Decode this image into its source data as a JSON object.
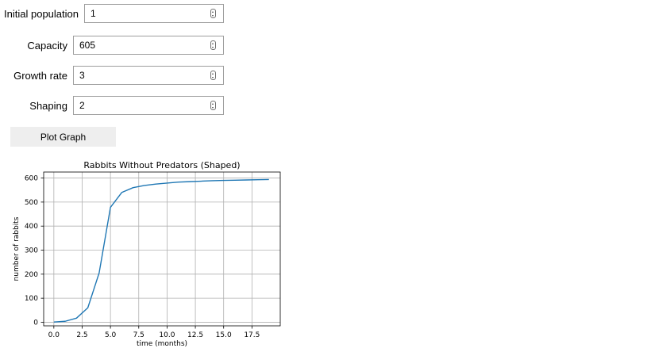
{
  "form": {
    "initial_population": {
      "label": "Initial population",
      "value": "1"
    },
    "capacity": {
      "label": "Capacity",
      "value": "605"
    },
    "growth_rate": {
      "label": "Growth rate",
      "value": "3"
    },
    "shaping": {
      "label": "Shaping",
      "value": "2"
    }
  },
  "plot_button": {
    "label": "Plot Graph"
  },
  "chart_data": {
    "type": "line",
    "title": "Rabbits Without Predators (Shaped)",
    "xlabel": "time (months)",
    "ylabel": "number of rabbits",
    "x": [
      0,
      1,
      2,
      3,
      4,
      5,
      6,
      7,
      8,
      9,
      10,
      11,
      12,
      13,
      14,
      15,
      16,
      17,
      18,
      19
    ],
    "series": [
      {
        "values": [
          1,
          4,
          17,
          60,
          205,
          478,
          540,
          560,
          569,
          575,
          579,
          583,
          585,
          587,
          589,
          590,
          591,
          592,
          593,
          594
        ],
        "color": "#1f77b4"
      }
    ],
    "xlim": [
      -0.9,
      20
    ],
    "ylim": [
      -15,
      625
    ],
    "xticks": [
      0,
      2.5,
      5,
      7.5,
      10,
      12.5,
      15,
      17.5
    ],
    "xtick_labels": [
      "0.0",
      "2.5",
      "5.0",
      "7.5",
      "10.0",
      "12.5",
      "15.0",
      "17.5"
    ],
    "yticks": [
      0,
      100,
      200,
      300,
      400,
      500,
      600
    ],
    "ytick_labels": [
      "0",
      "100",
      "200",
      "300",
      "400",
      "500",
      "600"
    ],
    "grid": true
  }
}
